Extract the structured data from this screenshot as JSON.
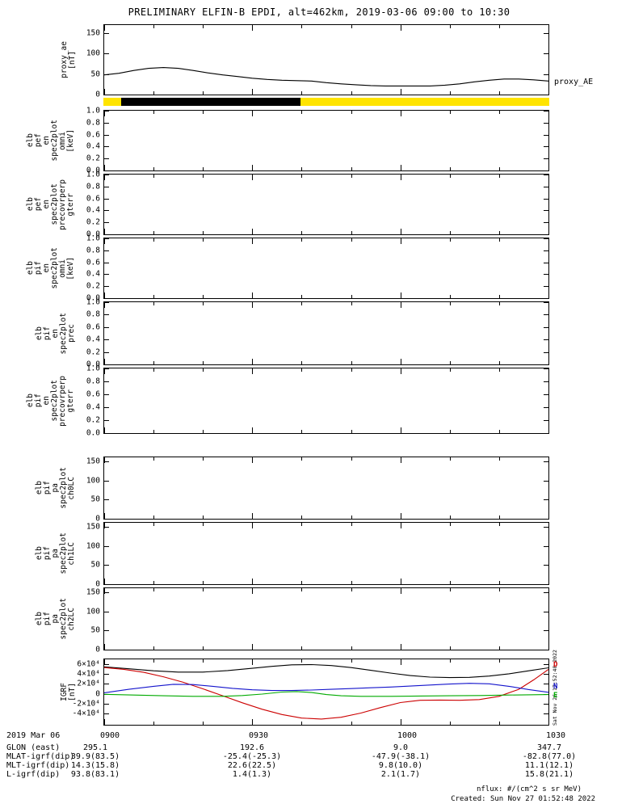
{
  "title": "PRELIMINARY ELFIN-B EPDI, alt=462km, 2019-03-06 09:00 to 10:30",
  "right_labels": {
    "proxy_ae": "proxy_AE"
  },
  "colors": {
    "yellow": "#ffe400",
    "black": "#000000",
    "red": "#cc0000",
    "blue": "#1414cc",
    "green": "#00aa00"
  },
  "panels": [
    {
      "id": "proxy-ae",
      "label_lines": [
        "proxy_ae",
        "[nT]"
      ],
      "tick_labels": [
        "150",
        "100",
        "50",
        "0"
      ],
      "tick_values": [
        150,
        100,
        50,
        0
      ],
      "ylim": [
        0,
        170
      ],
      "chart_ref": 0
    },
    {
      "id": "elb-pef-en-omni",
      "label_lines": [
        "elb",
        "pef",
        "en",
        "spec2plot",
        "omni",
        "[keV]"
      ],
      "tick_labels": [
        "1.0",
        "0.8",
        "0.6",
        "0.4",
        "0.2",
        "0.0"
      ],
      "tick_values": [
        1.0,
        0.8,
        0.6,
        0.4,
        0.2,
        0.0
      ],
      "ylim": [
        0,
        1
      ]
    },
    {
      "id": "elb-pef-en-precovrperp-gterr",
      "label_lines": [
        "elb",
        "pef",
        "en",
        "spec2plot",
        "precovrperp",
        "gterr"
      ],
      "tick_labels": [
        "1.0",
        "0.8",
        "0.6",
        "0.4",
        "0.2",
        "0.0"
      ],
      "tick_values": [
        1.0,
        0.8,
        0.6,
        0.4,
        0.2,
        0.0
      ],
      "ylim": [
        0,
        1
      ]
    },
    {
      "id": "elb-pif-en-omni",
      "label_lines": [
        "elb",
        "pif",
        "en",
        "spec2plot",
        "omni",
        "[keV]"
      ],
      "tick_labels": [
        "1.0",
        "0.8",
        "0.6",
        "0.4",
        "0.2",
        "0.0"
      ],
      "tick_values": [
        1.0,
        0.8,
        0.6,
        0.4,
        0.2,
        0.0
      ],
      "ylim": [
        0,
        1
      ]
    },
    {
      "id": "elb-pif-en-prec",
      "label_lines": [
        "elb",
        "pif",
        "en",
        "spec2plot",
        "prec"
      ],
      "tick_labels": [
        "1.0",
        "0.8",
        "0.6",
        "0.4",
        "0.2",
        "0.0"
      ],
      "tick_values": [
        1.0,
        0.8,
        0.6,
        0.4,
        0.2,
        0.0
      ],
      "ylim": [
        0,
        1
      ]
    },
    {
      "id": "elb-pif-en-precovrperp-gterr",
      "label_lines": [
        "elb",
        "pif",
        "en",
        "spec2plot",
        "precovrperp",
        "gterr"
      ],
      "tick_labels": [
        "1.0",
        "0.8",
        "0.6",
        "0.4",
        "0.2",
        "0.0"
      ],
      "tick_values": [
        1.0,
        0.8,
        0.6,
        0.4,
        0.2,
        0.0
      ],
      "ylim": [
        0,
        1
      ]
    },
    {
      "id": "elb-pif-pa-ch0lc",
      "label_lines": [
        "elb",
        "pif",
        "pa",
        "spec2plot",
        "ch0LC"
      ],
      "tick_labels": [
        "150",
        "100",
        "50",
        "0"
      ],
      "tick_values": [
        150,
        100,
        50,
        0
      ],
      "ylim": [
        0,
        160
      ]
    },
    {
      "id": "elb-pif-pa-ch1lc",
      "label_lines": [
        "elb",
        "pif",
        "pa",
        "spec2plot",
        "ch1LC"
      ],
      "tick_labels": [
        "150",
        "100",
        "50",
        "0"
      ],
      "tick_values": [
        150,
        100,
        50,
        0
      ],
      "ylim": [
        0,
        160
      ]
    },
    {
      "id": "elb-pif-pa-ch2lc",
      "label_lines": [
        "elb",
        "pif",
        "pa",
        "spec2plot",
        "ch2LC"
      ],
      "tick_labels": [
        "150",
        "100",
        "50",
        "0"
      ],
      "tick_values": [
        150,
        100,
        50,
        0
      ],
      "ylim": [
        0,
        160
      ]
    },
    {
      "id": "igrf",
      "label_lines": [
        "IGRF",
        "[nT]"
      ],
      "tick_labels": [
        "6×10⁴",
        "4×10⁴",
        "2×10⁴",
        "0",
        "-2×10⁴",
        "-4×10⁴"
      ],
      "tick_values": [
        60000,
        40000,
        20000,
        0,
        -20000,
        -40000
      ],
      "ylim": [
        -62000,
        69000
      ],
      "chart_ref": 1
    }
  ],
  "quality_bar": {
    "base_color": "#ffe400",
    "segments": [
      {
        "color": "#000000",
        "start": 0.04,
        "end": 0.442
      }
    ]
  },
  "chart_data": [
    {
      "type": "line",
      "title": "proxy_AE",
      "ylabel": "proxy_ae [nT]",
      "ylim": [
        0,
        170
      ],
      "yticks": [
        150,
        100,
        50,
        0
      ],
      "xlim": [
        0,
        90
      ],
      "x_unit": "minutes after 09:00 UT",
      "xticks": [
        "0900",
        "0930",
        "1000",
        "1030"
      ],
      "series": [
        {
          "name": "proxy_AE",
          "color": "#000000",
          "points": [
            [
              0,
              48
            ],
            [
              3,
              52
            ],
            [
              6,
              59
            ],
            [
              9,
              64
            ],
            [
              12,
              66
            ],
            [
              15,
              64
            ],
            [
              18,
              59
            ],
            [
              21,
              53
            ],
            [
              24,
              48
            ],
            [
              27,
              44
            ],
            [
              30,
              40
            ],
            [
              33,
              37
            ],
            [
              36,
              35
            ],
            [
              39,
              34
            ],
            [
              42,
              33
            ],
            [
              45,
              29
            ],
            [
              48,
              26
            ],
            [
              51,
              24
            ],
            [
              54,
              22
            ],
            [
              57,
              21
            ],
            [
              60,
              21
            ],
            [
              63,
              21
            ],
            [
              66,
              21
            ],
            [
              69,
              23
            ],
            [
              72,
              26
            ],
            [
              75,
              31
            ],
            [
              78,
              35
            ],
            [
              81,
              38
            ],
            [
              84,
              38
            ],
            [
              87,
              36
            ],
            [
              90,
              33
            ]
          ]
        }
      ]
    },
    {
      "type": "line",
      "title": "IGRF",
      "ylabel": "IGRF [nT]",
      "ylim": [
        -62000,
        69000
      ],
      "yticks": [
        60000,
        40000,
        20000,
        0,
        -20000,
        -40000
      ],
      "xlim": [
        0,
        90
      ],
      "x_unit": "minutes after 09:00 UT",
      "xticks": [
        "0900",
        "0930",
        "1000",
        "1030"
      ],
      "series": [
        {
          "name": "Btotal",
          "color": "#000000",
          "points": [
            [
              0,
              54000
            ],
            [
              5,
              50000
            ],
            [
              10,
              46000
            ],
            [
              15,
              43500
            ],
            [
              20,
              43500
            ],
            [
              25,
              46500
            ],
            [
              30,
              51000
            ],
            [
              34,
              55000
            ],
            [
              38,
              58000
            ],
            [
              42,
              58500
            ],
            [
              46,
              56500
            ],
            [
              50,
              52500
            ],
            [
              54,
              47000
            ],
            [
              58,
              41500
            ],
            [
              62,
              36500
            ],
            [
              66,
              33500
            ],
            [
              70,
              32500
            ],
            [
              74,
              33000
            ],
            [
              78,
              35500
            ],
            [
              82,
              40000
            ],
            [
              86,
              46000
            ],
            [
              90,
              52000
            ]
          ]
        },
        {
          "name": "D",
          "color": "#cc0000",
          "points": [
            [
              0,
              52500
            ],
            [
              4,
              49000
            ],
            [
              8,
              43000
            ],
            [
              12,
              34000
            ],
            [
              16,
              23000
            ],
            [
              20,
              10000
            ],
            [
              24,
              -4000
            ],
            [
              28,
              -18000
            ],
            [
              32,
              -31000
            ],
            [
              36,
              -41500
            ],
            [
              40,
              -48500
            ],
            [
              44,
              -50500
            ],
            [
              48,
              -47000
            ],
            [
              52,
              -38500
            ],
            [
              56,
              -27500
            ],
            [
              60,
              -17500
            ],
            [
              64,
              -13000
            ],
            [
              68,
              -12500
            ],
            [
              72,
              -13000
            ],
            [
              76,
              -11500
            ],
            [
              80,
              -5000
            ],
            [
              84,
              9000
            ],
            [
              87,
              28000
            ],
            [
              90,
              49000
            ]
          ]
        },
        {
          "name": "N",
          "color": "#1414cc",
          "points": [
            [
              0,
              2000
            ],
            [
              5,
              9000
            ],
            [
              10,
              15000
            ],
            [
              14,
              19000
            ],
            [
              18,
              18500
            ],
            [
              22,
              15000
            ],
            [
              26,
              11000
            ],
            [
              30,
              8000
            ],
            [
              34,
              6500
            ],
            [
              38,
              6500
            ],
            [
              42,
              7500
            ],
            [
              46,
              9000
            ],
            [
              50,
              10500
            ],
            [
              54,
              12000
            ],
            [
              58,
              13500
            ],
            [
              62,
              15500
            ],
            [
              66,
              17500
            ],
            [
              70,
              19500
            ],
            [
              74,
              21000
            ],
            [
              78,
              20000
            ],
            [
              82,
              15000
            ],
            [
              86,
              8500
            ],
            [
              90,
              3000
            ]
          ]
        },
        {
          "name": "E",
          "color": "#00aa00",
          "points": [
            [
              0,
              -1000
            ],
            [
              6,
              -2500
            ],
            [
              12,
              -4000
            ],
            [
              18,
              -5000
            ],
            [
              24,
              -5000
            ],
            [
              28,
              -3500
            ],
            [
              32,
              -500
            ],
            [
              36,
              3500
            ],
            [
              39,
              4500
            ],
            [
              42,
              2500
            ],
            [
              45,
              -1500
            ],
            [
              48,
              -4000
            ],
            [
              52,
              -5000
            ],
            [
              58,
              -5000
            ],
            [
              64,
              -4500
            ],
            [
              70,
              -4000
            ],
            [
              76,
              -3500
            ],
            [
              82,
              -2500
            ],
            [
              90,
              -1500
            ]
          ]
        }
      ]
    }
  ],
  "igrf_legend": [
    {
      "label": "D",
      "color": "#cc0000"
    },
    {
      "label": "N",
      "color": "#1414cc"
    },
    {
      "label": "E",
      "color": "#00aa00"
    }
  ],
  "xaxis": {
    "date_label": "2019 Mar 06",
    "tick_labels": [
      "0900",
      "0930",
      "1000",
      "1030"
    ]
  },
  "footer_rows": [
    {
      "label": "GLON (east)",
      "values": [
        "295.1",
        "192.6",
        "9.0",
        "347.7"
      ]
    },
    {
      "label": "MLAT-igrf(dip)",
      "values": [
        "39.9(83.5)",
        "-25.4(-25.3)",
        "-47.9(-38.1)",
        "-82.8(77.0)"
      ]
    },
    {
      "label": "MLT-igrf(dip)",
      "values": [
        "14.3(15.8)",
        "22.6(22.5)",
        "9.8(10.0)",
        "11.1(12.1)"
      ]
    },
    {
      "label": "L-igrf(dip)",
      "values": [
        "93.8(83.1)",
        "1.4(1.3)",
        "2.1(1.7)",
        "15.8(21.1)"
      ]
    }
  ],
  "notes": {
    "nflux": "nflux: #/(cm^2 s sr MeV)",
    "created": "Created: Sun Nov 27 01:52:48 2022",
    "side_timestamp": "Sat Nov 26 17:52:48 2022"
  }
}
